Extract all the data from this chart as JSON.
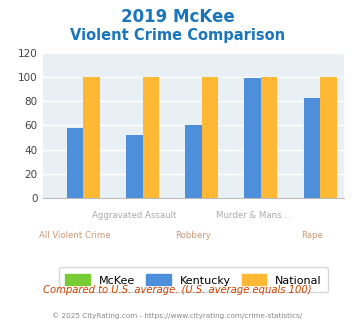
{
  "title_line1": "2019 McKee",
  "title_line2": "Violent Crime Comparison",
  "categories": [
    "All Violent Crime",
    "Aggravated Assault",
    "Robbery",
    "Murder & Mans...",
    "Rape"
  ],
  "x_labels_top": [
    "",
    "Aggravated Assault",
    "",
    "Murder & Mans...",
    ""
  ],
  "x_labels_bottom": [
    "All Violent Crime",
    "",
    "Robbery",
    "",
    "Rape"
  ],
  "mckee": [
    0,
    0,
    0,
    0,
    0
  ],
  "kentucky": [
    58,
    52,
    60,
    99,
    83
  ],
  "national": [
    100,
    100,
    100,
    100,
    100
  ],
  "mckee_color": "#77cc33",
  "kentucky_color": "#4d8fdb",
  "national_color": "#ffb833",
  "ylim": [
    0,
    120
  ],
  "yticks": [
    0,
    20,
    40,
    60,
    80,
    100,
    120
  ],
  "title_color": "#1a75bb",
  "bg_color": "#e8f0f5",
  "grid_color": "#ffffff",
  "xlabel_top_color": "#aaaaaa",
  "xlabel_bottom_color": "#cc9977",
  "footer_text": "Compared to U.S. average. (U.S. average equals 100)",
  "copyright_text": "© 2025 CityRating.com - https://www.cityrating.com/crime-statistics/",
  "footer_color": "#cc4400",
  "copyright_color": "#888888",
  "legend_labels": [
    "McKee",
    "Kentucky",
    "National"
  ]
}
